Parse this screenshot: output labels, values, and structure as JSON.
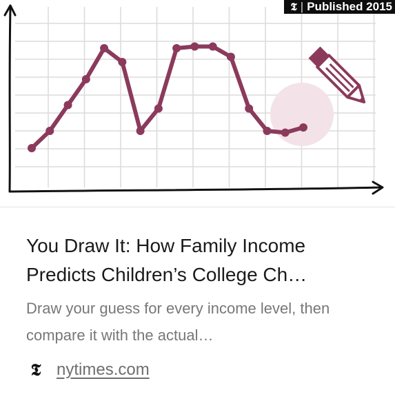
{
  "thumbnail": {
    "badge_logo": "𝕿",
    "badge_separator": "|",
    "badge_text": "Published 2015",
    "line_color": "#8b3a5c",
    "grid_color": "#dcdcdc",
    "highlight_color": "#f3e3e8",
    "pencil_color": "#8b3a5c",
    "icon": "pencil-icon",
    "drawn_line_values": [
      0.22,
      0.32,
      0.47,
      0.62,
      0.8,
      0.72,
      0.32,
      0.45,
      0.8,
      0.81,
      0.81,
      0.75,
      0.45,
      0.32,
      0.31,
      0.34
    ]
  },
  "article": {
    "title": "You Draw It: How Family Income Predicts Children’s College Ch…",
    "description": "Draw your guess for every income level, then compare it with the actual…"
  },
  "source": {
    "icon": "nyt-logo-icon",
    "icon_glyph": "𝕿",
    "domain": "nytimes.com"
  }
}
